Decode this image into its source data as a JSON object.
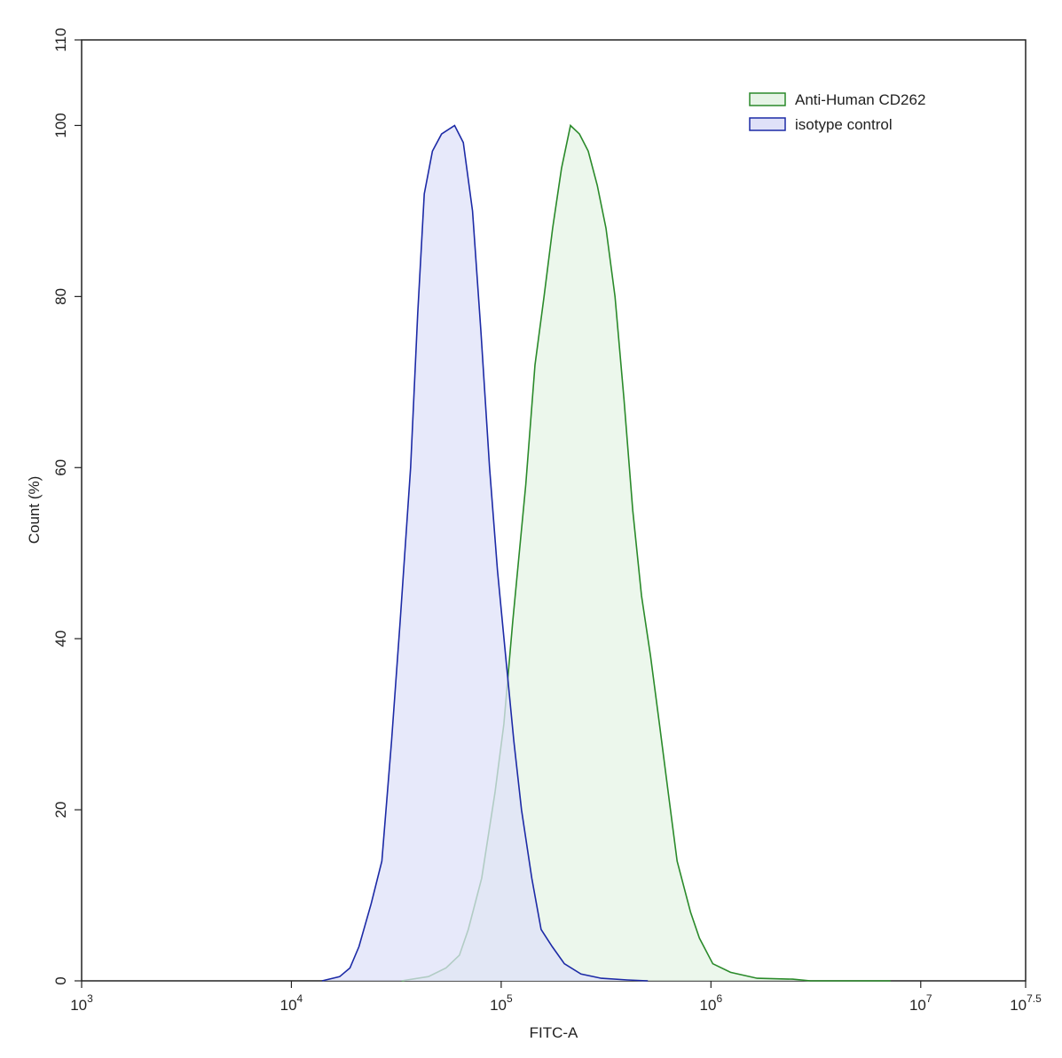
{
  "chart_data": {
    "type": "histogram-overlay",
    "xlabel": "FITC-A",
    "ylabel": "Count  (%)",
    "xscale": "log",
    "xlim": [
      1000,
      31622776.6
    ],
    "xticks": [
      {
        "value": 1000,
        "label": {
          "base": "10",
          "exponent": "3"
        }
      },
      {
        "value": 10000,
        "label": {
          "base": "10",
          "exponent": "4"
        }
      },
      {
        "value": 100000,
        "label": {
          "base": "10",
          "exponent": "5"
        }
      },
      {
        "value": 1000000,
        "label": {
          "base": "10",
          "exponent": "6"
        }
      },
      {
        "value": 10000000,
        "label": {
          "base": "10",
          "exponent": "7"
        }
      },
      {
        "value": 31622776.6,
        "label": {
          "base": "10",
          "exponent": "7.5"
        }
      }
    ],
    "ylim": [
      0,
      110
    ],
    "yticks": [
      0,
      20,
      40,
      60,
      80,
      100,
      110
    ],
    "legend": "upper right",
    "series": [
      {
        "name": "Anti-Human CD262",
        "color": "#2a8a2a",
        "fill": "#e6f4e6",
        "x": [
          33500,
          45000,
          54600,
          63200,
          69700,
          80700,
          93400,
          103000,
          113500,
          131000,
          145000,
          160000,
          176000,
          194000,
          214000,
          236000,
          260000,
          287000,
          316000,
          349000,
          385000,
          424000,
          467000,
          515000,
          568000,
          626000,
          690000,
          800000,
          881000,
          1020000,
          1240000,
          1660000,
          2450000,
          2980000,
          7180000
        ],
        "values": [
          0,
          0.5,
          1.5,
          3,
          6,
          12,
          22,
          30,
          42,
          58,
          72,
          80,
          88,
          95,
          100,
          99,
          97,
          93,
          88,
          80,
          68,
          55,
          45,
          38,
          30,
          22,
          14,
          8,
          5,
          2,
          1,
          0.3,
          0.2,
          0,
          0
        ]
      },
      {
        "name": "isotype control",
        "color": "#1c2aa6",
        "fill": "#dfe1f8",
        "x": [
          14000,
          17000,
          19000,
          21000,
          24000,
          27000,
          30000,
          33000,
          37000,
          40000,
          43000,
          47000,
          52000,
          60000,
          66000,
          73000,
          80000,
          88000,
          96000,
          105000,
          115000,
          125000,
          140000,
          155000,
          175000,
          200000,
          240000,
          300000,
          400000,
          500000
        ],
        "values": [
          0,
          0.5,
          1.5,
          4,
          9,
          14,
          28,
          42,
          60,
          78,
          92,
          97,
          99,
          100,
          98,
          90,
          76,
          60,
          48,
          38,
          28,
          20,
          12,
          6,
          4,
          2,
          0.8,
          0.3,
          0.1,
          0
        ]
      }
    ]
  }
}
